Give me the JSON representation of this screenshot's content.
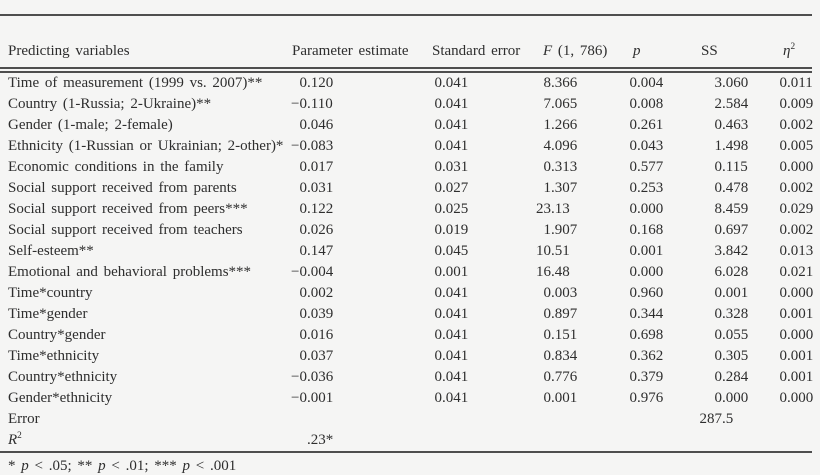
{
  "page": {
    "background": "#f5f5f4",
    "text_color": "#2e2e2e",
    "rule_color": "#4e4e4e"
  },
  "table": {
    "columns": [
      {
        "key": "variable",
        "segments": [
          {
            "text": "Predicting variables"
          }
        ]
      },
      {
        "key": "estimate",
        "segments": [
          {
            "text": "Parameter estimate"
          }
        ]
      },
      {
        "key": "se",
        "segments": [
          {
            "text": "Standard error"
          }
        ]
      },
      {
        "key": "f",
        "segments": [
          {
            "text": "F",
            "italic": true
          },
          {
            "text": " (1, 786)"
          }
        ]
      },
      {
        "key": "p",
        "segments": [
          {
            "text": "p",
            "italic": true
          }
        ]
      },
      {
        "key": "ss",
        "segments": [
          {
            "text": "SS"
          }
        ]
      },
      {
        "key": "eta",
        "segments": [
          {
            "text": "η",
            "italic": true
          },
          {
            "text": "2",
            "sup": true
          }
        ]
      }
    ],
    "rows": [
      {
        "variable": "Time of measurement (1999 vs. 2007)**",
        "estimate": "0.120",
        "se": "0.041",
        "f": "8.366",
        "p": "0.004",
        "ss": "3.060",
        "eta": "0.011"
      },
      {
        "variable": "Country (1-Russia; 2-Ukraine)**",
        "estimate": "−0.110",
        "se": "0.041",
        "f": "7.065",
        "p": "0.008",
        "ss": "2.584",
        "eta": "0.009"
      },
      {
        "variable": "Gender (1-male; 2-female)",
        "estimate": "0.046",
        "se": "0.041",
        "f": "1.266",
        "p": "0.261",
        "ss": "0.463",
        "eta": "0.002"
      },
      {
        "variable": "Ethnicity (1-Russian or Ukrainian; 2-other)*",
        "estimate": "−0.083",
        "se": "0.041",
        "f": "4.096",
        "p": "0.043",
        "ss": "1.498",
        "eta": "0.005"
      },
      {
        "variable": "Economic conditions in the family",
        "estimate": "0.017",
        "se": "0.031",
        "f": "0.313",
        "p": "0.577",
        "ss": "0.115",
        "eta": "0.000"
      },
      {
        "variable": "Social support received from parents",
        "estimate": "0.031",
        "se": "0.027",
        "f": "1.307",
        "p": "0.253",
        "ss": "0.478",
        "eta": "0.002"
      },
      {
        "variable": "Social support received from peers***",
        "estimate": "0.122",
        "se": "0.025",
        "f": "23.13",
        "p": "0.000",
        "ss": "8.459",
        "eta": "0.029"
      },
      {
        "variable": "Social support received from teachers",
        "estimate": "0.026",
        "se": "0.019",
        "f": "1.907",
        "p": "0.168",
        "ss": "0.697",
        "eta": "0.002"
      },
      {
        "variable": "Self-esteem**",
        "estimate": "0.147",
        "se": "0.045",
        "f": "10.51",
        "p": "0.001",
        "ss": "3.842",
        "eta": "0.013"
      },
      {
        "variable": "Emotional and behavioral problems***",
        "estimate": "−0.004",
        "se": "0.001",
        "f": "16.48",
        "p": "0.000",
        "ss": "6.028",
        "eta": "0.021"
      },
      {
        "variable": "Time*country",
        "estimate": "0.002",
        "se": "0.041",
        "f": "0.003",
        "p": "0.960",
        "ss": "0.001",
        "eta": "0.000"
      },
      {
        "variable": "Time*gender",
        "estimate": "0.039",
        "se": "0.041",
        "f": "0.897",
        "p": "0.344",
        "ss": "0.328",
        "eta": "0.001"
      },
      {
        "variable": "Country*gender",
        "estimate": "0.016",
        "se": "0.041",
        "f": "0.151",
        "p": "0.698",
        "ss": "0.055",
        "eta": "0.000"
      },
      {
        "variable": "Time*ethnicity",
        "estimate": "0.037",
        "se": "0.041",
        "f": "0.834",
        "p": "0.362",
        "ss": "0.305",
        "eta": "0.001"
      },
      {
        "variable": "Country*ethnicity",
        "estimate": "−0.036",
        "se": "0.041",
        "f": "0.776",
        "p": "0.379",
        "ss": "0.284",
        "eta": "0.001"
      },
      {
        "variable": "Gender*ethnicity",
        "estimate": "−0.001",
        "se": "0.041",
        "f": "0.001",
        "p": "0.976",
        "ss": "0.000",
        "eta": "0.000"
      },
      {
        "variable": "Error",
        "ss": "287.5"
      },
      {
        "variable": [
          {
            "text": "R",
            "italic": true
          },
          {
            "text": "2",
            "sup": true
          }
        ],
        "estimate": ".23*"
      }
    ]
  },
  "footnote": {
    "segments": [
      {
        "text": "* "
      },
      {
        "text": "p",
        "italic": true
      },
      {
        "text": " < .05; ** "
      },
      {
        "text": "p",
        "italic": true
      },
      {
        "text": " < .01; *** "
      },
      {
        "text": "p",
        "italic": true
      },
      {
        "text": " < .001"
      }
    ]
  }
}
